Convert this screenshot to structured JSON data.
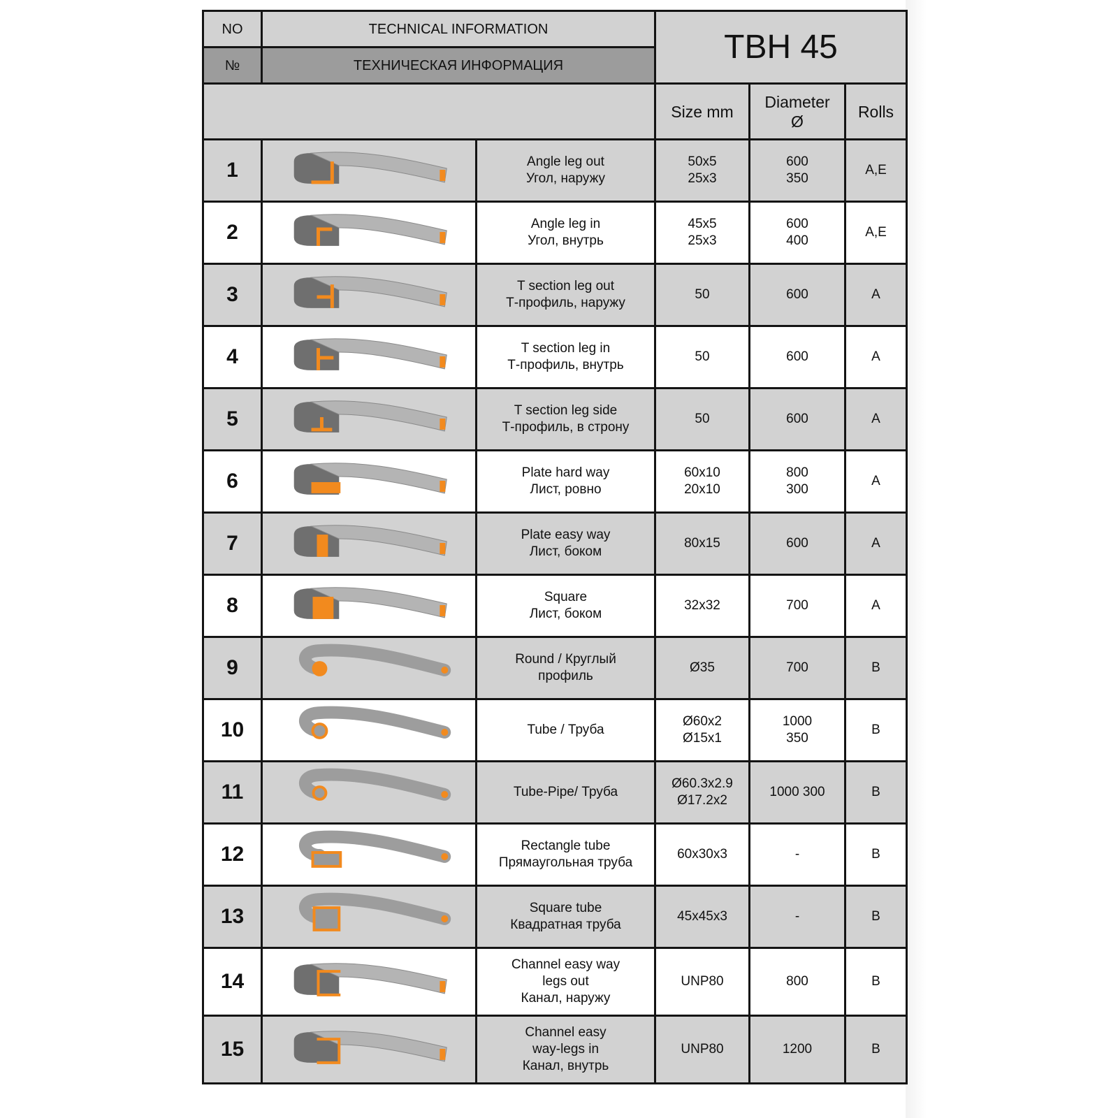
{
  "header": {
    "no_en": "NO",
    "no_ru": "№",
    "title_en": "TECHNICAL INFORMATION",
    "title_ru": "ТЕХНИЧЕСКАЯ ИНФОРМАЦИЯ",
    "model": "TBH 45"
  },
  "columns": {
    "size": "Size mm",
    "diameter": "Diameter\nØ",
    "rolls": "Rolls"
  },
  "colors": {
    "section_orange": "#f28a1e",
    "metal_gray": "#a8a8a8",
    "row_gray": "#d2d2d2"
  },
  "rows": [
    {
      "no": "1",
      "profile": "angle-leg-out-icon",
      "desc": "Angle leg out\nУгол, наружу",
      "size": "50x5\n25x3",
      "diameter": "600\n350",
      "rolls": "A,E"
    },
    {
      "no": "2",
      "profile": "angle-leg-in-icon",
      "desc": "Angle leg in\nУгол, внутрь",
      "size": "45x5\n25x3",
      "diameter": "600\n400",
      "rolls": "A,E"
    },
    {
      "no": "3",
      "profile": "t-section-leg-out-icon",
      "desc": "T section leg out\nТ-профиль, наружу",
      "size": "50",
      "diameter": "600",
      "rolls": "A"
    },
    {
      "no": "4",
      "profile": "t-section-leg-in-icon",
      "desc": "T section leg in\nТ-профиль, внутрь",
      "size": "50",
      "diameter": "600",
      "rolls": "A"
    },
    {
      "no": "5",
      "profile": "t-section-leg-side-icon",
      "desc": "T section leg side\nТ-профиль, в строну",
      "size": "50",
      "diameter": "600",
      "rolls": "A"
    },
    {
      "no": "6",
      "profile": "plate-hard-way-icon",
      "desc": "Plate hard way\nЛист, ровно",
      "size": "60x10\n20x10",
      "diameter": "800\n300",
      "rolls": "A"
    },
    {
      "no": "7",
      "profile": "plate-easy-way-icon",
      "desc": "Plate easy way\nЛист, боком",
      "size": "80x15",
      "diameter": "600",
      "rolls": "A"
    },
    {
      "no": "8",
      "profile": "square-bar-icon",
      "desc": "Square\nЛист, боком",
      "size": "32x32",
      "diameter": "700",
      "rolls": "A"
    },
    {
      "no": "9",
      "profile": "round-bar-icon",
      "desc": "Round / Круглый\nпрофиль",
      "size": "Ø35",
      "diameter": "700",
      "rolls": "B"
    },
    {
      "no": "10",
      "profile": "tube-icon",
      "desc": "Tube / Труба",
      "size": "Ø60x2\nØ15x1",
      "diameter": "1000\n350",
      "rolls": "B"
    },
    {
      "no": "11",
      "profile": "tube-pipe-icon",
      "desc": "Tube-Pipe/ Труба",
      "size": "Ø60.3x2.9\nØ17.2x2",
      "diameter": "1000 300",
      "rolls": "B"
    },
    {
      "no": "12",
      "profile": "rectangle-tube-icon",
      "desc": "Rectangle tube\nПрямаугольная труба",
      "size": "60x30x3",
      "diameter": "-",
      "rolls": "B"
    },
    {
      "no": "13",
      "profile": "square-tube-icon",
      "desc": "Square tube\nКвадратная труба",
      "size": "45x45x3",
      "diameter": "-",
      "rolls": "B"
    },
    {
      "no": "14",
      "profile": "channel-legs-out-icon",
      "desc": "Channel easy way\nlegs out\nКанал, наружу",
      "size": "UNP80",
      "diameter": "800",
      "rolls": "B"
    },
    {
      "no": "15",
      "profile": "channel-legs-in-icon",
      "desc": "Channel easy\nway-legs in\nКанал, внутрь",
      "size": "UNP80",
      "diameter": "1200",
      "rolls": "B"
    }
  ]
}
